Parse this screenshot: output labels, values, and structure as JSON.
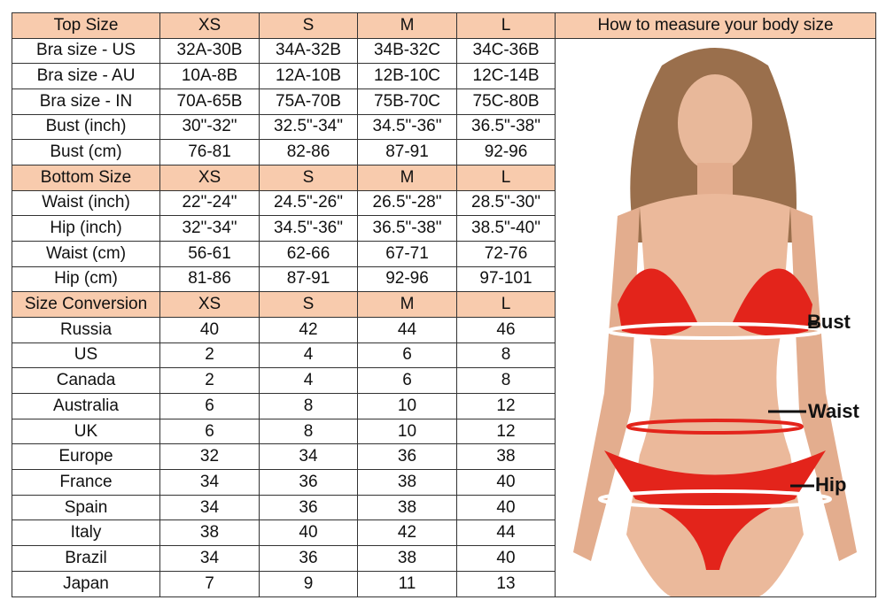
{
  "measure_title": "How to measure your body size",
  "measure_labels": {
    "bust": "Bust",
    "waist": "Waist",
    "hip": "Hip"
  },
  "colors": {
    "header_bg": "#f8cbad",
    "bikini": "#e3241b"
  },
  "rows": [
    {
      "header": true,
      "cells": [
        "Top Size",
        "XS",
        "S",
        "M",
        "L"
      ]
    },
    {
      "cells": [
        "Bra size - US",
        "32A-30B",
        "34A-32B",
        "34B-32C",
        "34C-36B"
      ]
    },
    {
      "cells": [
        "Bra size - AU",
        "10A-8B",
        "12A-10B",
        "12B-10C",
        "12C-14B"
      ]
    },
    {
      "cells": [
        "Bra size - IN",
        "70A-65B",
        "75A-70B",
        "75B-70C",
        "75C-80B"
      ]
    },
    {
      "cells": [
        "Bust (inch)",
        "30\"-32\"",
        "32.5\"-34\"",
        "34.5\"-36\"",
        "36.5\"-38\""
      ]
    },
    {
      "cells": [
        "Bust (cm)",
        "76-81",
        "82-86",
        "87-91",
        "92-96"
      ]
    },
    {
      "header": true,
      "cells": [
        "Bottom Size",
        "XS",
        "S",
        "M",
        "L"
      ]
    },
    {
      "cells": [
        "Waist (inch)",
        "22\"-24\"",
        "24.5\"-26\"",
        "26.5\"-28\"",
        "28.5\"-30\""
      ]
    },
    {
      "cells": [
        "Hip (inch)",
        "32\"-34\"",
        "34.5\"-36\"",
        "36.5\"-38\"",
        "38.5\"-40\""
      ]
    },
    {
      "cells": [
        "Waist (cm)",
        "56-61",
        "62-66",
        "67-71",
        "72-76"
      ]
    },
    {
      "cells": [
        "Hip (cm)",
        "81-86",
        "87-91",
        "92-96",
        "97-101"
      ]
    },
    {
      "header": true,
      "cells": [
        "Size Conversion",
        "XS",
        "S",
        "M",
        "L"
      ]
    },
    {
      "cells": [
        "Russia",
        "40",
        "42",
        "44",
        "46"
      ]
    },
    {
      "cells": [
        "US",
        "2",
        "4",
        "6",
        "8"
      ]
    },
    {
      "cells": [
        "Canada",
        "2",
        "4",
        "6",
        "8"
      ]
    },
    {
      "cells": [
        "Australia",
        "6",
        "8",
        "10",
        "12"
      ]
    },
    {
      "cells": [
        "UK",
        "6",
        "8",
        "10",
        "12"
      ]
    },
    {
      "cells": [
        "Europe",
        "32",
        "34",
        "36",
        "38"
      ]
    },
    {
      "cells": [
        "France",
        "34",
        "36",
        "38",
        "40"
      ]
    },
    {
      "cells": [
        "Spain",
        "34",
        "36",
        "38",
        "40"
      ]
    },
    {
      "cells": [
        "Italy",
        "38",
        "40",
        "42",
        "44"
      ]
    },
    {
      "cells": [
        "Brazil",
        "34",
        "36",
        "38",
        "40"
      ]
    },
    {
      "cells": [
        "Japan",
        "7",
        "9",
        "11",
        "13"
      ]
    }
  ]
}
